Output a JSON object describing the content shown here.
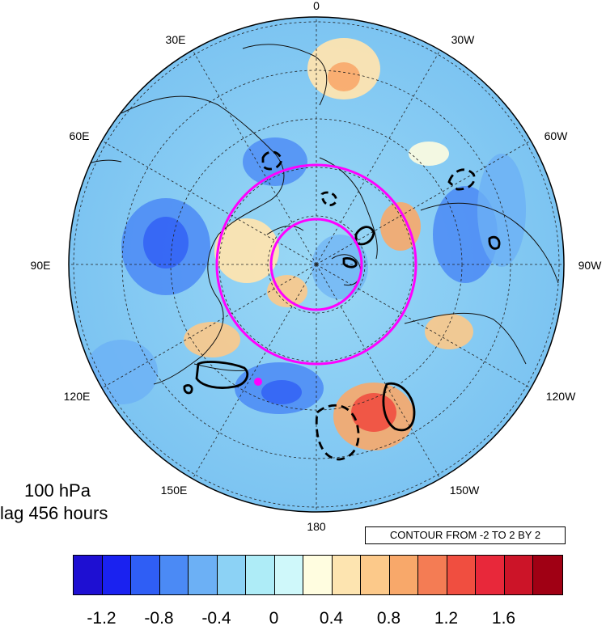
{
  "map": {
    "projection": "north polar stereographic",
    "center": "North Pole",
    "background_field": "shaded anomaly (blue negative, red positive)",
    "contour_style": "black lines, dashed negative",
    "marker_color": "#ff00ff",
    "circle_color": "#ff00ff"
  },
  "longitude_labels": [
    "0",
    "30W",
    "60W",
    "90W",
    "120W",
    "150W",
    "180",
    "150E",
    "120E",
    "90E",
    "60E",
    "30E"
  ],
  "title": {
    "level": "100 hPa",
    "lag": "lag 456 hours"
  },
  "contour_note": "CONTOUR FROM -2 TO 2 BY 2",
  "colorbar": {
    "colors": [
      "#1e0fd2",
      "#1a22f0",
      "#2f5ef5",
      "#4b8af5",
      "#6cb0f5",
      "#8cd2f5",
      "#aeecf7",
      "#cff8fa",
      "#fffde0",
      "#fde4b0",
      "#fcc98a",
      "#f8a86a",
      "#f47c54",
      "#f04e40",
      "#e8283a",
      "#cc1428",
      "#a00014"
    ],
    "tick_labels": [
      "-1.2",
      "-0.8",
      "-0.4",
      "0",
      "0.4",
      "0.8",
      "1.2",
      "1.6"
    ]
  }
}
